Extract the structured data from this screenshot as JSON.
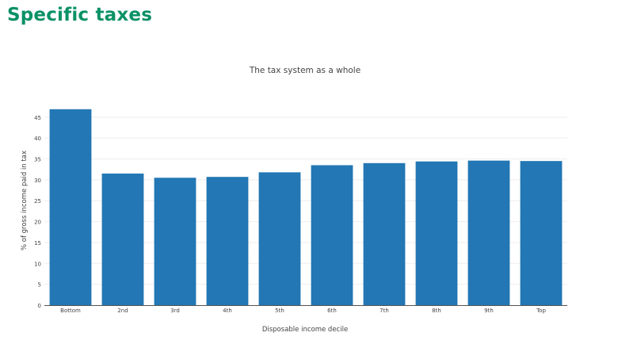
{
  "page": {
    "heading": "Specific taxes",
    "heading_color": "#0a9166"
  },
  "chart_data": {
    "type": "bar",
    "title": "The tax system as a whole",
    "xlabel": "Disposable income decile",
    "ylabel": "% of gross income paid in tax",
    "categories": [
      "Bottom",
      "2nd",
      "3rd",
      "4th",
      "5th",
      "6th",
      "7th",
      "8th",
      "9th",
      "Top"
    ],
    "series": [
      {
        "values": [
          46.9,
          31.5,
          30.5,
          30.7,
          31.8,
          33.5,
          34.0,
          34.4,
          34.6,
          34.5
        ],
        "color": "#2277b4"
      }
    ],
    "ylim": [
      0,
      48
    ],
    "yticks": [
      0,
      5,
      10,
      15,
      20,
      25,
      30,
      35,
      40,
      45
    ],
    "grid": true,
    "legend": "none"
  }
}
